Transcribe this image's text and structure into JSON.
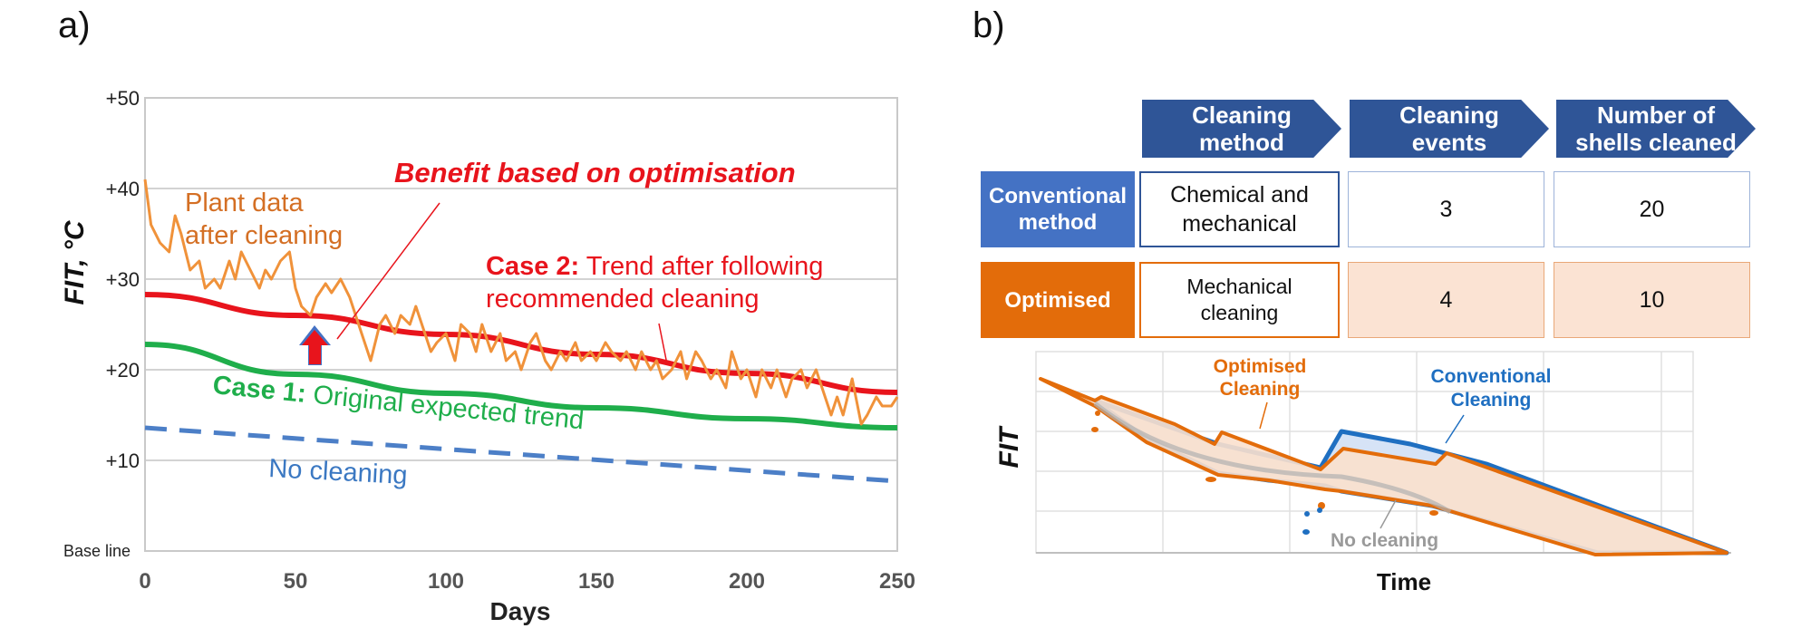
{
  "panels": {
    "a": "a)",
    "b": "b)"
  },
  "chart_data": [
    {
      "type": "line",
      "panel": "a",
      "xlabel": "Days",
      "ylabel": "FIT, °C",
      "xlim": [
        0,
        250
      ],
      "ylim": [
        0,
        50
      ],
      "xticks": [
        "0",
        "50",
        "100",
        "150",
        "200",
        "250"
      ],
      "yticks": [
        "+10",
        "+20",
        "+30",
        "+40",
        "+50"
      ],
      "baseline_label": "Base line",
      "grid": true,
      "series": [
        {
          "name": "Plant data after cleaning",
          "color": "#f0923a",
          "points": [
            [
              0,
              41
            ],
            [
              2,
              36
            ],
            [
              5,
              34
            ],
            [
              8,
              33
            ],
            [
              10,
              37
            ],
            [
              12,
              35
            ],
            [
              15,
              31
            ],
            [
              18,
              32
            ],
            [
              20,
              29
            ],
            [
              23,
              30
            ],
            [
              25,
              29
            ],
            [
              28,
              32
            ],
            [
              30,
              30
            ],
            [
              32,
              33
            ],
            [
              35,
              31
            ],
            [
              38,
              29
            ],
            [
              40,
              31
            ],
            [
              42,
              30
            ],
            [
              45,
              32
            ],
            [
              48,
              33
            ],
            [
              50,
              29
            ],
            [
              52,
              27
            ],
            [
              55,
              26
            ],
            [
              57,
              28
            ],
            [
              60,
              29.5
            ],
            [
              62,
              28.5
            ],
            [
              65,
              30
            ],
            [
              68,
              28
            ],
            [
              70,
              26
            ],
            [
              72,
              24
            ],
            [
              75,
              21
            ],
            [
              78,
              25
            ],
            [
              80,
              26
            ],
            [
              83,
              24
            ],
            [
              85,
              26
            ],
            [
              88,
              25
            ],
            [
              90,
              27
            ],
            [
              93,
              24
            ],
            [
              95,
              22
            ],
            [
              97,
              23
            ],
            [
              100,
              24
            ],
            [
              103,
              21
            ],
            [
              105,
              25
            ],
            [
              108,
              24
            ],
            [
              110,
              22
            ],
            [
              112,
              25
            ],
            [
              115,
              22
            ],
            [
              118,
              24
            ],
            [
              120,
              21
            ],
            [
              123,
              22
            ],
            [
              125,
              20
            ],
            [
              128,
              23
            ],
            [
              130,
              24
            ],
            [
              133,
              21
            ],
            [
              135,
              20
            ],
            [
              138,
              22
            ],
            [
              140,
              21
            ],
            [
              143,
              23
            ],
            [
              145,
              21
            ],
            [
              148,
              22
            ],
            [
              150,
              21
            ],
            [
              153,
              23
            ],
            [
              155,
              22
            ],
            [
              158,
              21
            ],
            [
              160,
              22
            ],
            [
              163,
              20
            ],
            [
              165,
              22
            ],
            [
              168,
              20
            ],
            [
              170,
              21
            ],
            [
              172,
              19
            ],
            [
              175,
              20
            ],
            [
              178,
              22
            ],
            [
              180,
              19
            ],
            [
              183,
              22
            ],
            [
              185,
              21
            ],
            [
              188,
              19
            ],
            [
              190,
              20
            ],
            [
              193,
              18
            ],
            [
              195,
              22
            ],
            [
              198,
              19
            ],
            [
              200,
              20
            ],
            [
              203,
              17
            ],
            [
              205,
              20
            ],
            [
              208,
              18
            ],
            [
              210,
              20
            ],
            [
              213,
              17
            ],
            [
              215,
              19
            ],
            [
              218,
              20
            ],
            [
              220,
              18
            ],
            [
              223,
              20
            ],
            [
              225,
              18
            ],
            [
              228,
              15
            ],
            [
              230,
              17
            ],
            [
              232,
              15
            ],
            [
              235,
              19
            ],
            [
              238,
              14
            ],
            [
              240,
              15
            ],
            [
              243,
              17
            ],
            [
              245,
              16
            ],
            [
              248,
              16
            ],
            [
              250,
              17
            ]
          ]
        },
        {
          "name": "Case 2: Trend after following recommended cleaning",
          "color": "#e8141c",
          "x": [
            0,
            50,
            100,
            150,
            200,
            250
          ],
          "y": [
            28.3,
            26.0,
            23.9,
            21.7,
            19.6,
            17.5
          ]
        },
        {
          "name": "Case 1: Original expected trend",
          "color": "#1fae4b",
          "x": [
            0,
            50,
            100,
            150,
            200,
            250
          ],
          "y": [
            22.8,
            19.5,
            17.4,
            15.8,
            14.6,
            13.6
          ]
        },
        {
          "name": "No cleaning",
          "color": "#4c7fc7",
          "dashed": true,
          "x": [
            0,
            250
          ],
          "y": [
            13.6,
            7.7
          ]
        }
      ],
      "annotations": {
        "benefit": "Benefit based on optimisation",
        "plant_line1": "Plant data",
        "plant_line2": "after cleaning",
        "case2_bold": "Case 2:",
        "case2_rest": " Trend after following",
        "case2_line2": "recommended cleaning",
        "case1_bold": "Case 1:",
        "case1_rest": " Original expected trend",
        "no_cleaning": "No cleaning"
      }
    },
    {
      "type": "area",
      "panel": "b",
      "xlabel": "Time",
      "ylabel": "FIT",
      "series": [
        {
          "name": "Optimised Cleaning",
          "color": "#e36c0a"
        },
        {
          "name": "Conventional Cleaning",
          "color": "#1f6fc1"
        },
        {
          "name": "No cleaning",
          "color": "#a6a6a6"
        }
      ],
      "labels": {
        "optimised_line1": "Optimised",
        "optimised_line2": "Cleaning",
        "conventional_line1": "Conventional",
        "conventional_line2": "Cleaning",
        "no_cleaning": "No cleaning"
      }
    }
  ],
  "table": {
    "headers": [
      {
        "line1": "Cleaning",
        "line2": "method"
      },
      {
        "line1": "Cleaning",
        "line2": "events"
      },
      {
        "line1": "Number of",
        "line2": "shells cleaned"
      }
    ],
    "rows": [
      {
        "label1": "Conventional",
        "label2": "method",
        "label_color": "#4472c4",
        "cells": [
          {
            "line1": "Chemical and",
            "line2": "mechanical"
          },
          {
            "line1": "3",
            "line2": ""
          },
          {
            "line1": "20",
            "line2": ""
          }
        ]
      },
      {
        "label1": "Optimised",
        "label2": "",
        "label_color": "#e36c0a",
        "cells": [
          {
            "line1": "Mechanical",
            "line2": "cleaning"
          },
          {
            "line1": "4",
            "line2": ""
          },
          {
            "line1": "10",
            "line2": ""
          }
        ]
      }
    ],
    "header_color": "#2f5597"
  }
}
